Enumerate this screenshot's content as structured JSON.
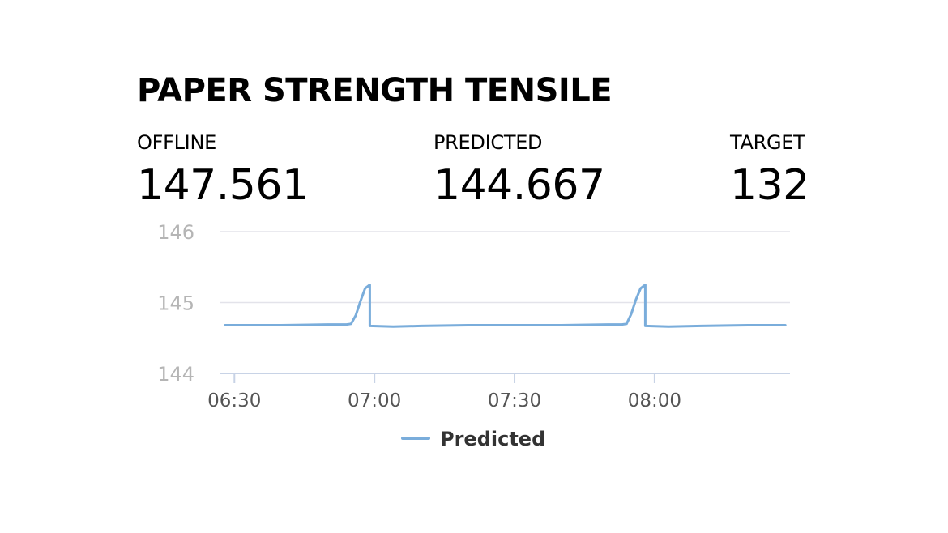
{
  "title": "PAPER STRENGTH TENSILE",
  "kpis": {
    "offline": {
      "label": "OFFLINE",
      "value": "147.561"
    },
    "predicted": {
      "label": "PREDICTED",
      "value": "144.667"
    },
    "target": {
      "label": "TARGET",
      "value": "132"
    }
  },
  "colors": {
    "series": "#7aaddb",
    "grid": "#e3e3ea",
    "axis": "#c8d3e6",
    "tick_label": "#b5b5b5",
    "x_tick_label": "#555555"
  },
  "chart_data": {
    "type": "line",
    "xlabel": "",
    "ylabel": "",
    "ylim": [
      144,
      146
    ],
    "yticks": [
      "144",
      "145",
      "146"
    ],
    "xlim": [
      "06:27",
      "08:29"
    ],
    "xticks": [
      "06:30",
      "07:00",
      "07:30",
      "08:00"
    ],
    "grid": true,
    "legend_position": "bottom",
    "series": [
      {
        "name": "Predicted",
        "x": [
          "06:28",
          "06:40",
          "06:50",
          "06:54",
          "06:55",
          "06:56",
          "06:57",
          "06:58",
          "06:59",
          "06:59",
          "07:04",
          "07:10",
          "07:20",
          "07:40",
          "07:50",
          "07:53",
          "07:54",
          "07:55",
          "07:56",
          "07:57",
          "07:58",
          "07:58",
          "08:03",
          "08:10",
          "08:20",
          "08:28"
        ],
        "y": [
          144.68,
          144.68,
          144.69,
          144.69,
          144.7,
          144.82,
          145.02,
          145.2,
          145.25,
          144.67,
          144.66,
          144.67,
          144.68,
          144.68,
          144.69,
          144.69,
          144.7,
          144.84,
          145.04,
          145.2,
          145.25,
          144.67,
          144.66,
          144.67,
          144.68,
          144.68
        ]
      }
    ]
  }
}
